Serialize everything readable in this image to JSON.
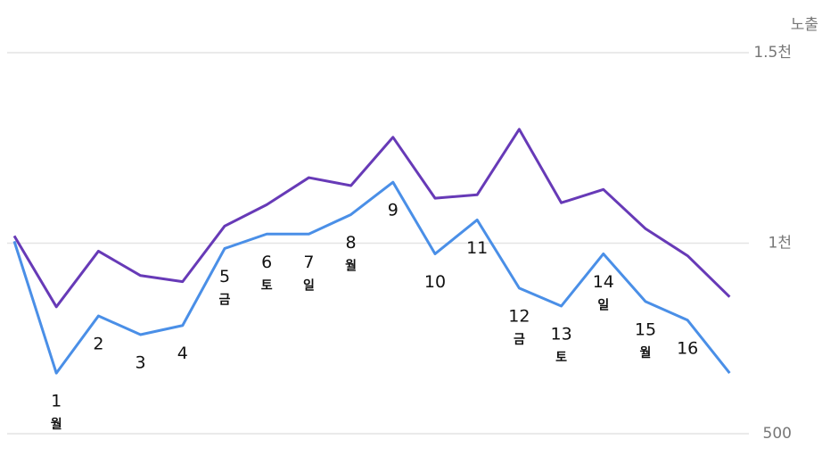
{
  "chart_data": {
    "type": "line",
    "y_axis_title": "노출",
    "categories": [
      null,
      "1",
      "2",
      "3",
      "4",
      "5",
      "6",
      "7",
      "8",
      "9",
      "10",
      "11",
      "12",
      "13",
      "14",
      "15",
      "16",
      null
    ],
    "weekdays": [
      null,
      "월",
      null,
      null,
      null,
      "금",
      "토",
      "일",
      "월",
      null,
      null,
      null,
      "금",
      "토",
      "일",
      "월",
      null,
      null
    ],
    "series": [
      {
        "color": "#673ab7",
        "values": [
          1019,
          833,
          979,
          915,
          899,
          1045,
          1101,
          1172,
          1151,
          1278,
          1118,
          1127,
          1299,
          1106,
          1141,
          1038,
          967,
          859
        ]
      },
      {
        "color": "#4a8fe7",
        "values": [
          1005,
          659,
          809,
          760,
          784,
          986,
          1024,
          1024,
          1075,
          1160,
          972,
          1061,
          882,
          835,
          972,
          847,
          798,
          659
        ]
      }
    ],
    "ylim": [
      500,
      1500
    ],
    "yticks": [
      500,
      {
        "value": 1000,
        "label": "1천"
      },
      {
        "value": 1500,
        "label": "1.5천"
      }
    ],
    "grid": true
  }
}
